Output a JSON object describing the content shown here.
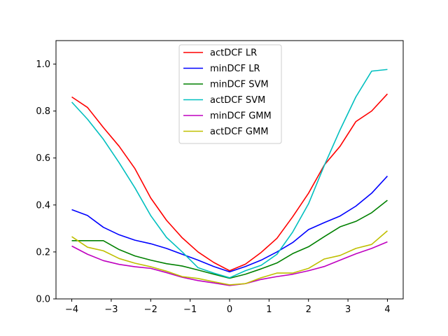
{
  "chart_data": {
    "type": "line",
    "title": "",
    "xlabel": "",
    "ylabel": "",
    "xlim": [
      -4.4,
      4.4
    ],
    "ylim": [
      0.0,
      1.1
    ],
    "xticks": [
      -4,
      -3,
      -2,
      -1,
      0,
      1,
      2,
      3,
      4
    ],
    "xtick_labels": [
      "−4",
      "−3",
      "−2",
      "−1",
      "0",
      "1",
      "2",
      "3",
      "4"
    ],
    "yticks": [
      0.0,
      0.2,
      0.4,
      0.6,
      0.8,
      1.0
    ],
    "ytick_labels": [
      "0.0",
      "0.2",
      "0.4",
      "0.6",
      "0.8",
      "1.0"
    ],
    "grid": false,
    "legend_position": "top-center",
    "x": [
      -4.0,
      -3.6,
      -3.2,
      -2.8,
      -2.4,
      -2.0,
      -1.6,
      -1.2,
      -0.8,
      -0.4,
      0.0,
      0.4,
      0.8,
      1.2,
      1.6,
      2.0,
      2.4,
      2.8,
      3.2,
      3.6,
      4.0
    ],
    "series": [
      {
        "name": "actDCF LR",
        "color": "#ff0000",
        "values": [
          0.86,
          0.815,
          0.73,
          0.65,
          0.555,
          0.43,
          0.335,
          0.26,
          0.2,
          0.155,
          0.12,
          0.148,
          0.198,
          0.258,
          0.35,
          0.45,
          0.57,
          0.65,
          0.755,
          0.8,
          0.873
        ]
      },
      {
        "name": "minDCF LR",
        "color": "#0000ff",
        "values": [
          0.38,
          0.355,
          0.305,
          0.273,
          0.25,
          0.235,
          0.215,
          0.19,
          0.165,
          0.138,
          0.115,
          0.138,
          0.165,
          0.2,
          0.24,
          0.295,
          0.325,
          0.353,
          0.395,
          0.45,
          0.523
        ]
      },
      {
        "name": "minDCF SVM",
        "color": "#008000",
        "values": [
          0.248,
          0.248,
          0.248,
          0.21,
          0.183,
          0.165,
          0.15,
          0.14,
          0.123,
          0.105,
          0.088,
          0.105,
          0.128,
          0.153,
          0.193,
          0.222,
          0.265,
          0.307,
          0.33,
          0.367,
          0.42
        ]
      },
      {
        "name": "actDCF SVM",
        "color": "#00bfbf",
        "values": [
          0.838,
          0.765,
          0.68,
          0.58,
          0.473,
          0.355,
          0.262,
          0.2,
          0.133,
          0.11,
          0.09,
          0.12,
          0.143,
          0.19,
          0.285,
          0.405,
          0.568,
          0.72,
          0.86,
          0.97,
          0.977
        ]
      },
      {
        "name": "minDCF GMM",
        "color": "#bf00bf",
        "values": [
          0.225,
          0.19,
          0.163,
          0.147,
          0.137,
          0.13,
          0.112,
          0.092,
          0.078,
          0.068,
          0.057,
          0.065,
          0.083,
          0.095,
          0.105,
          0.12,
          0.138,
          0.165,
          0.192,
          0.215,
          0.243
        ]
      },
      {
        "name": "actDCF GMM",
        "color": "#bfbf00",
        "values": [
          0.265,
          0.22,
          0.205,
          0.172,
          0.152,
          0.137,
          0.118,
          0.095,
          0.087,
          0.073,
          0.06,
          0.065,
          0.09,
          0.11,
          0.11,
          0.13,
          0.17,
          0.185,
          0.215,
          0.232,
          0.29
        ]
      }
    ]
  }
}
